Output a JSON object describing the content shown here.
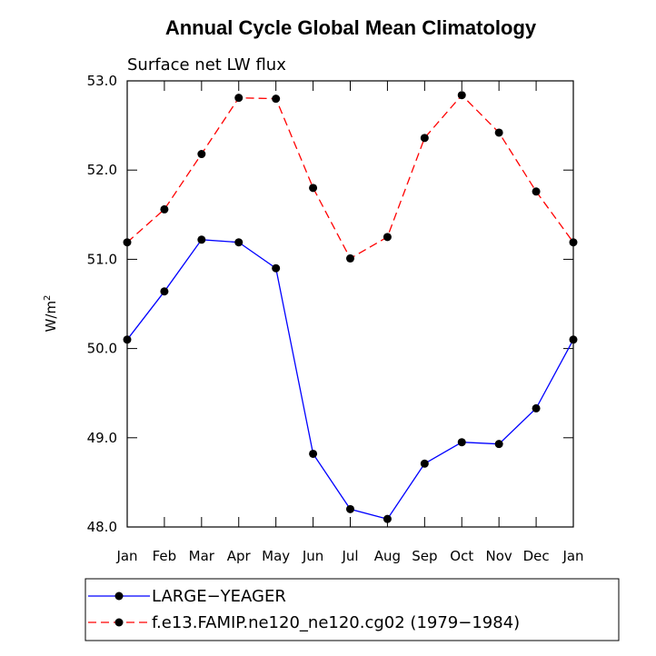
{
  "chart_data": {
    "type": "line",
    "title": "Annual Cycle Global Mean Climatology",
    "subtitle": "Surface net LW flux",
    "xlabel": "",
    "ylabel": "W/m",
    "ylabel_sup": "2",
    "categories": [
      "Jan",
      "Feb",
      "Mar",
      "Apr",
      "May",
      "Jun",
      "Jul",
      "Aug",
      "Sep",
      "Oct",
      "Nov",
      "Dec",
      "Jan"
    ],
    "ylim": [
      48.0,
      53.0
    ],
    "yticks": [
      "48.0",
      "49.0",
      "50.0",
      "51.0",
      "52.0",
      "53.0"
    ],
    "legend_position": "bottom",
    "series": [
      {
        "name": "LARGE−YEAGER",
        "color": "#0000ff",
        "dash": "solid",
        "values": [
          50.1,
          50.64,
          51.22,
          51.19,
          50.9,
          48.82,
          48.2,
          48.09,
          48.71,
          48.95,
          48.93,
          49.33,
          50.1
        ]
      },
      {
        "name": "f.e13.FAMIP.ne120_ne120.cg02 (1979−1984)",
        "color": "#ff0000",
        "dash": "dashed",
        "values": [
          51.19,
          51.56,
          52.18,
          52.81,
          52.8,
          51.8,
          51.01,
          51.25,
          52.36,
          52.84,
          52.42,
          51.76,
          51.19
        ]
      }
    ]
  }
}
